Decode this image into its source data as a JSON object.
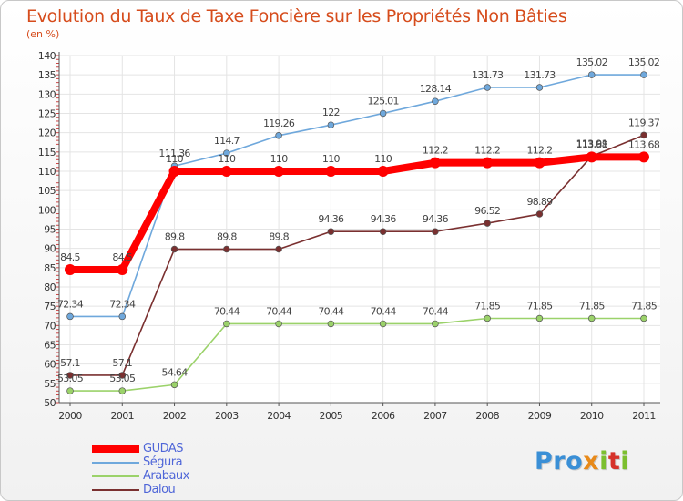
{
  "chart_data": {
    "type": "line",
    "title": "Evolution du Taux de Taxe Foncière sur les Propriétés Non Bâties",
    "ylabel": "(en %)",
    "xlabel": "",
    "categories": [
      "2000",
      "2001",
      "2002",
      "2003",
      "2004",
      "2005",
      "2006",
      "2007",
      "2008",
      "2009",
      "2010",
      "2011"
    ],
    "ylim": [
      50,
      140
    ],
    "ytick_step": 5,
    "series": [
      {
        "name": "GUDAS",
        "color": "#ff0000",
        "highlight": true,
        "values": [
          84.5,
          84.5,
          110,
          110,
          110,
          110,
          110,
          112.2,
          112.2,
          112.2,
          113.68,
          113.68
        ],
        "labels": [
          "84.5",
          "84.5",
          "110",
          "110",
          "110",
          "110",
          "110",
          "112.2",
          "112.2",
          "112.2",
          "113.68",
          "113.68"
        ]
      },
      {
        "name": "Ségura",
        "color": "#6fa8dc",
        "highlight": false,
        "values": [
          72.34,
          72.34,
          111.36,
          114.7,
          119.26,
          122,
          125.01,
          128.14,
          131.73,
          131.73,
          135.02,
          135.02
        ],
        "labels": [
          "72.34",
          "72.34",
          "111.36",
          "114.7",
          "119.26",
          "122",
          "125.01",
          "128.14",
          "131.73",
          "131.73",
          "135.02",
          "135.02"
        ]
      },
      {
        "name": "Arabaux",
        "color": "#9bd26a",
        "highlight": false,
        "values": [
          53.05,
          53.05,
          54.64,
          70.44,
          70.44,
          70.44,
          70.44,
          70.44,
          71.85,
          71.85,
          71.85,
          71.85
        ],
        "labels": [
          "53.05",
          "53.05",
          "54.64",
          "70.44",
          "70.44",
          "70.44",
          "70.44",
          "70.44",
          "71.85",
          "71.85",
          "71.85",
          "71.85"
        ]
      },
      {
        "name": "Dalou",
        "color": "#7a3030",
        "highlight": false,
        "values": [
          57.1,
          57.1,
          89.8,
          89.8,
          89.8,
          94.36,
          94.36,
          94.36,
          96.52,
          98.89,
          113.91,
          119.37
        ],
        "labels": [
          "57.1",
          "57.1",
          "89.8",
          "89.8",
          "89.8",
          "94.36",
          "94.36",
          "94.36",
          "96.52",
          "98.89",
          "113.91",
          "119.37"
        ]
      }
    ],
    "legend_position": "bottom-left"
  },
  "brand": {
    "p1": "Pro",
    "p2": "x",
    "p3": "i",
    "p4": "t",
    "p5": "i"
  }
}
